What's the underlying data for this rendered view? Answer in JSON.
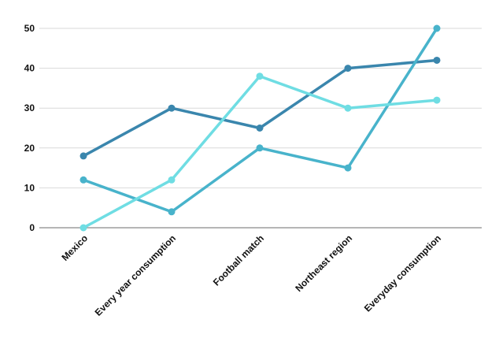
{
  "chart_data": {
    "type": "line",
    "title": "",
    "xlabel": "",
    "ylabel": "",
    "categories": [
      "Mexico",
      "Every year consumption",
      "Football match",
      "Northeast region",
      "Everyday consumption"
    ],
    "ylim": [
      0,
      50
    ],
    "yticks": [
      0,
      10,
      20,
      30,
      40,
      50
    ],
    "grid": true,
    "legend": "none",
    "series": [
      {
        "color": "#3a86ad",
        "values": [
          18,
          30,
          25,
          40,
          42
        ]
      },
      {
        "color": "#48b3cb",
        "values": [
          12,
          4,
          20,
          15,
          50
        ]
      },
      {
        "color": "#6fdde3",
        "values": [
          0,
          12,
          38,
          30,
          32
        ]
      }
    ]
  }
}
